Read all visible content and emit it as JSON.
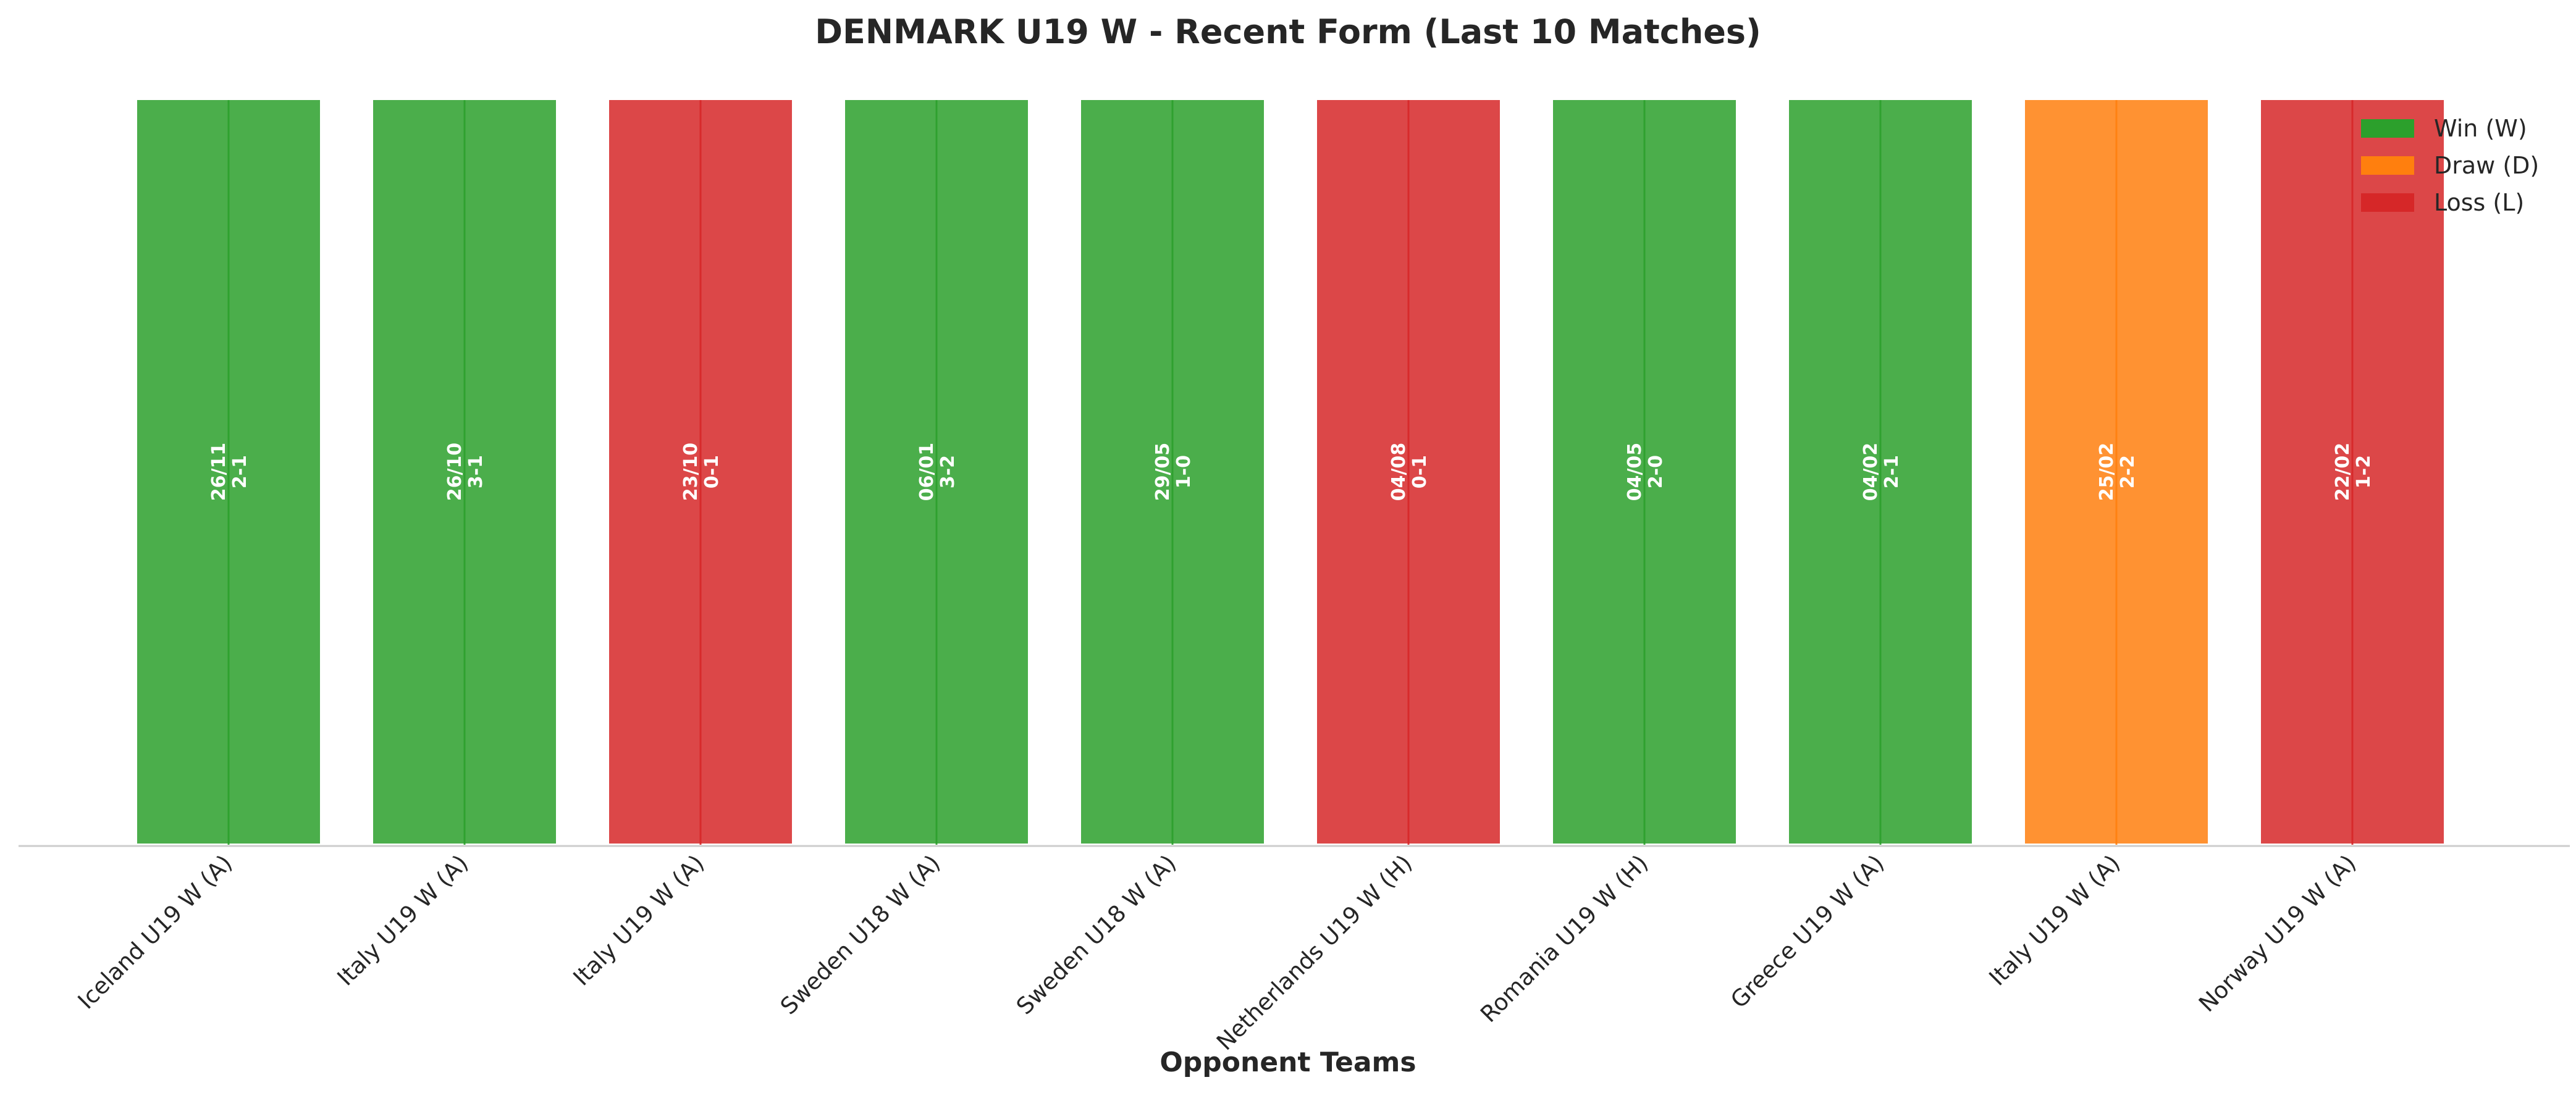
{
  "chart_data": {
    "type": "bar",
    "title": "DENMARK U19 W - Recent Form (Last 10 Matches)",
    "xlabel": "Opponent Teams",
    "ylabel": "",
    "ylim": [
      0,
      1
    ],
    "grid": false,
    "legend_position": "top-right",
    "categories": [
      "Iceland U19 W (A)",
      "Italy U19 W (A)",
      "Italy U19 W (A)",
      "Sweden U18 W (A)",
      "Sweden U18 W (A)",
      "Netherlands U19 W (H)",
      "Romania U19 W (H)",
      "Greece U19 W (A)",
      "Italy U19 W (A)",
      "Norway U19 W (A)"
    ],
    "values": [
      1,
      1,
      1,
      1,
      1,
      1,
      1,
      1,
      1,
      1
    ],
    "results": [
      "W",
      "W",
      "L",
      "W",
      "W",
      "L",
      "W",
      "W",
      "D",
      "L"
    ],
    "dates": [
      "26/11",
      "26/10",
      "23/10",
      "06/01",
      "29/05",
      "04/08",
      "04/05",
      "04/02",
      "25/02",
      "22/02"
    ],
    "scores": [
      "2-1",
      "3-1",
      "0-1",
      "3-2",
      "1-0",
      "0-1",
      "2-0",
      "2-1",
      "2-2",
      "1-2"
    ],
    "colors": {
      "W": "#2ca02c",
      "D": "#ff7f0e",
      "L": "#d62728"
    },
    "legend": [
      {
        "key": "W",
        "label": "Win (W)"
      },
      {
        "key": "D",
        "label": "Draw (D)"
      },
      {
        "key": "L",
        "label": "Loss (L)"
      }
    ]
  }
}
